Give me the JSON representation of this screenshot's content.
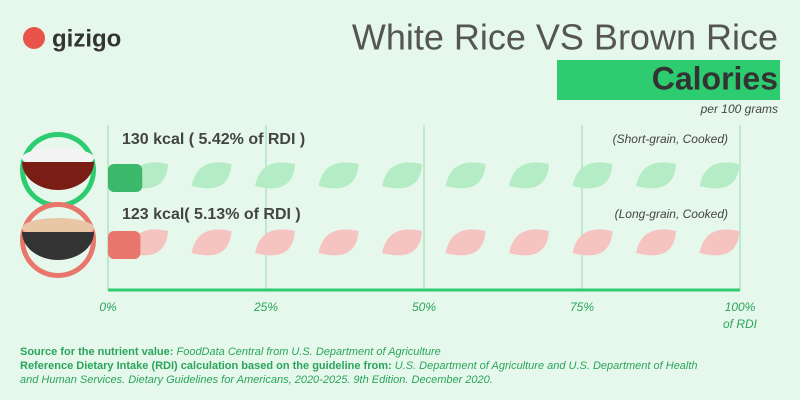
{
  "chart_data": {
    "type": "bar",
    "brand": "gizigo",
    "title": "White Rice VS Brown Rice",
    "subtitle": "Calories",
    "note": "per 100 grams",
    "categories": [
      "(Short-grain, Cooked)",
      "(Long-grain, Cooked)"
    ],
    "values": [
      5.42,
      5.13
    ],
    "value_labels": [
      "130 kcal ( 5.42% of RDI )",
      "123 kcal( 5.13% of RDI )"
    ],
    "colors": [
      "#3cb86a",
      "#e8766c"
    ],
    "xlim": [
      0,
      100
    ],
    "xticks": [
      {
        "value": 0,
        "label": "0%"
      },
      {
        "value": 25,
        "label": "25%"
      },
      {
        "value": 50,
        "label": "50%"
      },
      {
        "value": 75,
        "label": "75%"
      },
      {
        "value": 100,
        "label": "100%"
      }
    ],
    "xlabel": "of RDI",
    "grid": true,
    "footnotes": [
      {
        "label": "Source for the nutrient value:",
        "text": "FoodData Central from U.S. Department of Agriculture"
      },
      {
        "label": "Reference Dietary Intake (RDI) calculation based on the guideline from:",
        "text": "U.S. Department of Agriculture and U.S. Department of Health and Human Services. Dietary Guidelines for Americans, 2020-2025. 9th Edition. December 2020."
      }
    ]
  }
}
